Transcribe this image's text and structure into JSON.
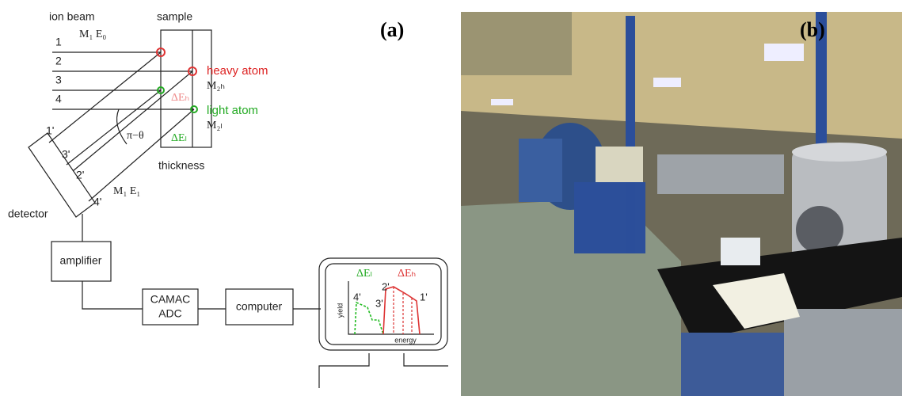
{
  "panel_a": {
    "label": "(a)",
    "ion_beam": "ion beam",
    "sample": "sample",
    "beam_energy": "M₁ E₀",
    "beams": [
      "1",
      "2",
      "3",
      "4"
    ],
    "heavy_atom": "heavy atom",
    "heavy_mass": "M₂ₕ",
    "heavy_loss": "ΔEₕ",
    "light_atom": "light atom",
    "light_mass": "M₂ₗ",
    "light_loss": "ΔEₗ",
    "angle": "π−θ",
    "detected": [
      "1'",
      "3'",
      "2'",
      "4'"
    ],
    "thickness": "thickness",
    "scattered_energy": "M₁ E₁",
    "detector": "detector",
    "amplifier": "amplifier",
    "adc": [
      "CAMAC",
      "ADC"
    ],
    "computer": "computer",
    "spectrum": {
      "light_loss": "ΔEₗ",
      "heavy_loss": "ΔEₕ",
      "peaks": [
        "2'",
        "4'",
        "3'",
        "1'"
      ],
      "y_label": "yield",
      "x_label": "energy"
    }
  },
  "panel_b": {
    "label": "(b)"
  }
}
